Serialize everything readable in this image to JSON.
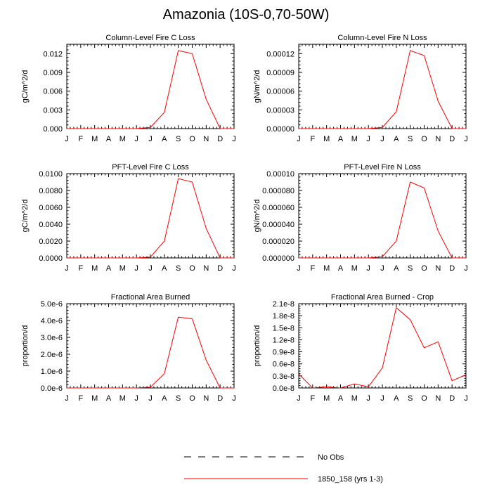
{
  "title": "Amazonia (10S-0,70-50W)",
  "colors": {
    "series": "#ff0000",
    "axis": "#000000",
    "obs": "#000000"
  },
  "legend": {
    "obs_label": "No Obs",
    "model_label": "1850_158 (yrs 1-3)"
  },
  "chart_data": [
    {
      "type": "line",
      "title": "Column-Level Fire C Loss",
      "ylabel": "gC/m^2/d",
      "categories": [
        "J",
        "F",
        "M",
        "A",
        "M",
        "J",
        "J",
        "A",
        "S",
        "O",
        "N",
        "D",
        "J"
      ],
      "ylim": [
        0,
        0.0135
      ],
      "yticks": [
        0,
        0.003,
        0.006,
        0.009,
        0.012
      ],
      "ytick_labels": [
        "0.000",
        "0.003",
        "0.006",
        "0.009",
        "0.012"
      ],
      "series": [
        {
          "name": "1850_158 (yrs 1-3)",
          "values": [
            0,
            0,
            0,
            0,
            0,
            0,
            0.0002,
            0.0026,
            0.0125,
            0.012,
            0.0047,
            0,
            0
          ]
        }
      ]
    },
    {
      "type": "line",
      "title": "Column-Level Fire N Loss",
      "ylabel": "gN/m^2/d",
      "categories": [
        "J",
        "F",
        "M",
        "A",
        "M",
        "J",
        "J",
        "A",
        "S",
        "O",
        "N",
        "D",
        "J"
      ],
      "ylim": [
        0,
        0.000135
      ],
      "yticks": [
        0,
        3e-05,
        6e-05,
        9e-05,
        0.00012
      ],
      "ytick_labels": [
        "0.00000",
        "0.00003",
        "0.00006",
        "0.00009",
        "0.00012"
      ],
      "series": [
        {
          "name": "1850_158 (yrs 1-3)",
          "values": [
            0,
            0,
            0,
            0,
            0,
            0,
            2e-06,
            2.7e-05,
            0.000125,
            0.000117,
            4.4e-05,
            0,
            0
          ]
        }
      ]
    },
    {
      "type": "line",
      "title": "PFT-Level Fire C Loss",
      "ylabel": "gC/m^2/d",
      "categories": [
        "J",
        "F",
        "M",
        "A",
        "M",
        "J",
        "J",
        "A",
        "S",
        "O",
        "N",
        "D",
        "J"
      ],
      "ylim": [
        0,
        0.01
      ],
      "yticks": [
        0,
        0.002,
        0.004,
        0.006,
        0.008,
        0.01
      ],
      "ytick_labels": [
        "0.0000",
        "0.0020",
        "0.0040",
        "0.0060",
        "0.0080",
        "0.0100"
      ],
      "series": [
        {
          "name": "1850_158 (yrs 1-3)",
          "values": [
            0,
            0,
            0,
            0,
            0,
            0,
            0.0001,
            0.002,
            0.0094,
            0.009,
            0.0035,
            0,
            0
          ]
        }
      ]
    },
    {
      "type": "line",
      "title": "PFT-Level Fire N Loss",
      "ylabel": "gN/m^2/d",
      "categories": [
        "J",
        "F",
        "M",
        "A",
        "M",
        "J",
        "J",
        "A",
        "S",
        "O",
        "N",
        "D",
        "J"
      ],
      "ylim": [
        0,
        0.0001
      ],
      "yticks": [
        0,
        2e-05,
        4e-05,
        6e-05,
        8e-05,
        0.0001
      ],
      "ytick_labels": [
        "0.000000",
        "0.000020",
        "0.000040",
        "0.000060",
        "0.000080",
        "0.00010"
      ],
      "series": [
        {
          "name": "1850_158 (yrs 1-3)",
          "values": [
            0,
            0,
            0,
            0,
            0,
            0,
            1.5e-06,
            2e-05,
            9e-05,
            8.3e-05,
            3.2e-05,
            0,
            0
          ]
        }
      ]
    },
    {
      "type": "line",
      "title": "Fractional Area Burned",
      "ylabel": "proportion/d",
      "categories": [
        "J",
        "F",
        "M",
        "A",
        "M",
        "J",
        "J",
        "A",
        "S",
        "O",
        "N",
        "D",
        "J"
      ],
      "ylim": [
        0,
        5e-06
      ],
      "yticks": [
        0,
        1e-06,
        2e-06,
        3e-06,
        4e-06,
        5e-06
      ],
      "ytick_labels": [
        "0.0e-6",
        "1.0e-6",
        "2.0e-6",
        "3.0e-6",
        "4.0e-6",
        "5.0e-6"
      ],
      "series": [
        {
          "name": "1850_158 (yrs 1-3)",
          "values": [
            0,
            0,
            0,
            0,
            0,
            0,
            5e-08,
            8.5e-07,
            4.2e-06,
            4.1e-06,
            1.65e-06,
            0,
            0
          ]
        }
      ]
    },
    {
      "type": "line",
      "title": "Fractional Area Burned - Crop",
      "ylabel": "proportion/d",
      "categories": [
        "J",
        "F",
        "M",
        "A",
        "M",
        "J",
        "J",
        "A",
        "S",
        "O",
        "N",
        "D",
        "J"
      ],
      "ylim": [
        0,
        2.1e-08
      ],
      "yticks": [
        0,
        3e-09,
        6e-09,
        9e-09,
        1.2e-08,
        1.5e-08,
        1.8e-08,
        2.1e-08
      ],
      "ytick_labels": [
        "0.0e-8",
        "0.3e-8",
        "0.6e-8",
        "0.9e-8",
        "1.2e-8",
        "1.5e-8",
        "1.8e-8",
        "2.1e-8"
      ],
      "series": [
        {
          "name": "1850_158 (yrs 1-3)",
          "values": [
            3.5e-09,
            0,
            3e-10,
            0,
            1e-09,
            3e-10,
            5e-09,
            2e-08,
            1.7e-08,
            1e-08,
            1.15e-08,
            1.8e-09,
            3.3e-09
          ]
        }
      ]
    }
  ]
}
